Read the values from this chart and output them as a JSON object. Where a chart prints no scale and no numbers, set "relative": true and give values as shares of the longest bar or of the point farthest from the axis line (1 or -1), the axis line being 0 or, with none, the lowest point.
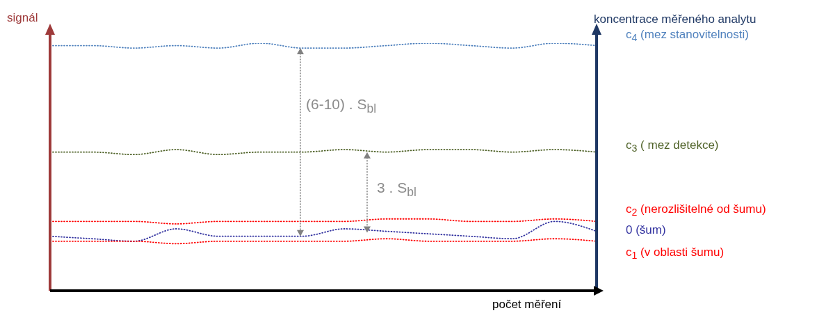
{
  "chart_data": {
    "type": "line",
    "relative": true,
    "line_style": "dotted",
    "ylabel": "signál",
    "y2label": "koncentrace měřeného analytu",
    "xlabel": "počet měření",
    "annotations": [
      "(6-10) . S$_{bl}$",
      "3 . S$_{bl}$"
    ],
    "categories": [
      null,
      null,
      null,
      null,
      null,
      null,
      null,
      null,
      null,
      null,
      null,
      null,
      null,
      null
    ],
    "series": [
      {
        "name": "c$_{4}$ (mez stanovitelnosti)",
        "color": "#4f81bd",
        "values": [
          0.99,
          0.99,
          0.98,
          0.99,
          0.98,
          1.0,
          0.98,
          0.98,
          0.99,
          1.0,
          0.99,
          0.98,
          1.0,
          0.99
        ]
      },
      {
        "name": "c$_{3}$ ( mez detekce)",
        "color": "#4f6228",
        "values": [
          0.56,
          0.56,
          0.55,
          0.57,
          0.55,
          0.56,
          0.56,
          0.57,
          0.56,
          0.57,
          0.57,
          0.56,
          0.57,
          0.56
        ]
      },
      {
        "name": "c$_{2}$ (nerozlišitelné od šumu)",
        "color": "#ff0000",
        "values": [
          0.28,
          0.28,
          0.28,
          0.27,
          0.28,
          0.28,
          0.28,
          0.28,
          0.29,
          0.29,
          0.28,
          0.28,
          0.29,
          0.28
        ]
      },
      {
        "name": "0  (šum)",
        "color": "#3333a0",
        "values": [
          0.22,
          0.21,
          0.2,
          0.25,
          0.22,
          0.22,
          0.22,
          0.25,
          0.24,
          0.23,
          0.22,
          0.21,
          0.28,
          0.24
        ]
      },
      {
        "name": "c$_{1}$  (v oblasti šumu)",
        "color": "#ff0000",
        "values": [
          0.2,
          0.2,
          0.2,
          0.19,
          0.2,
          0.2,
          0.2,
          0.2,
          0.21,
          0.2,
          0.2,
          0.2,
          0.21,
          0.2
        ]
      }
    ]
  }
}
